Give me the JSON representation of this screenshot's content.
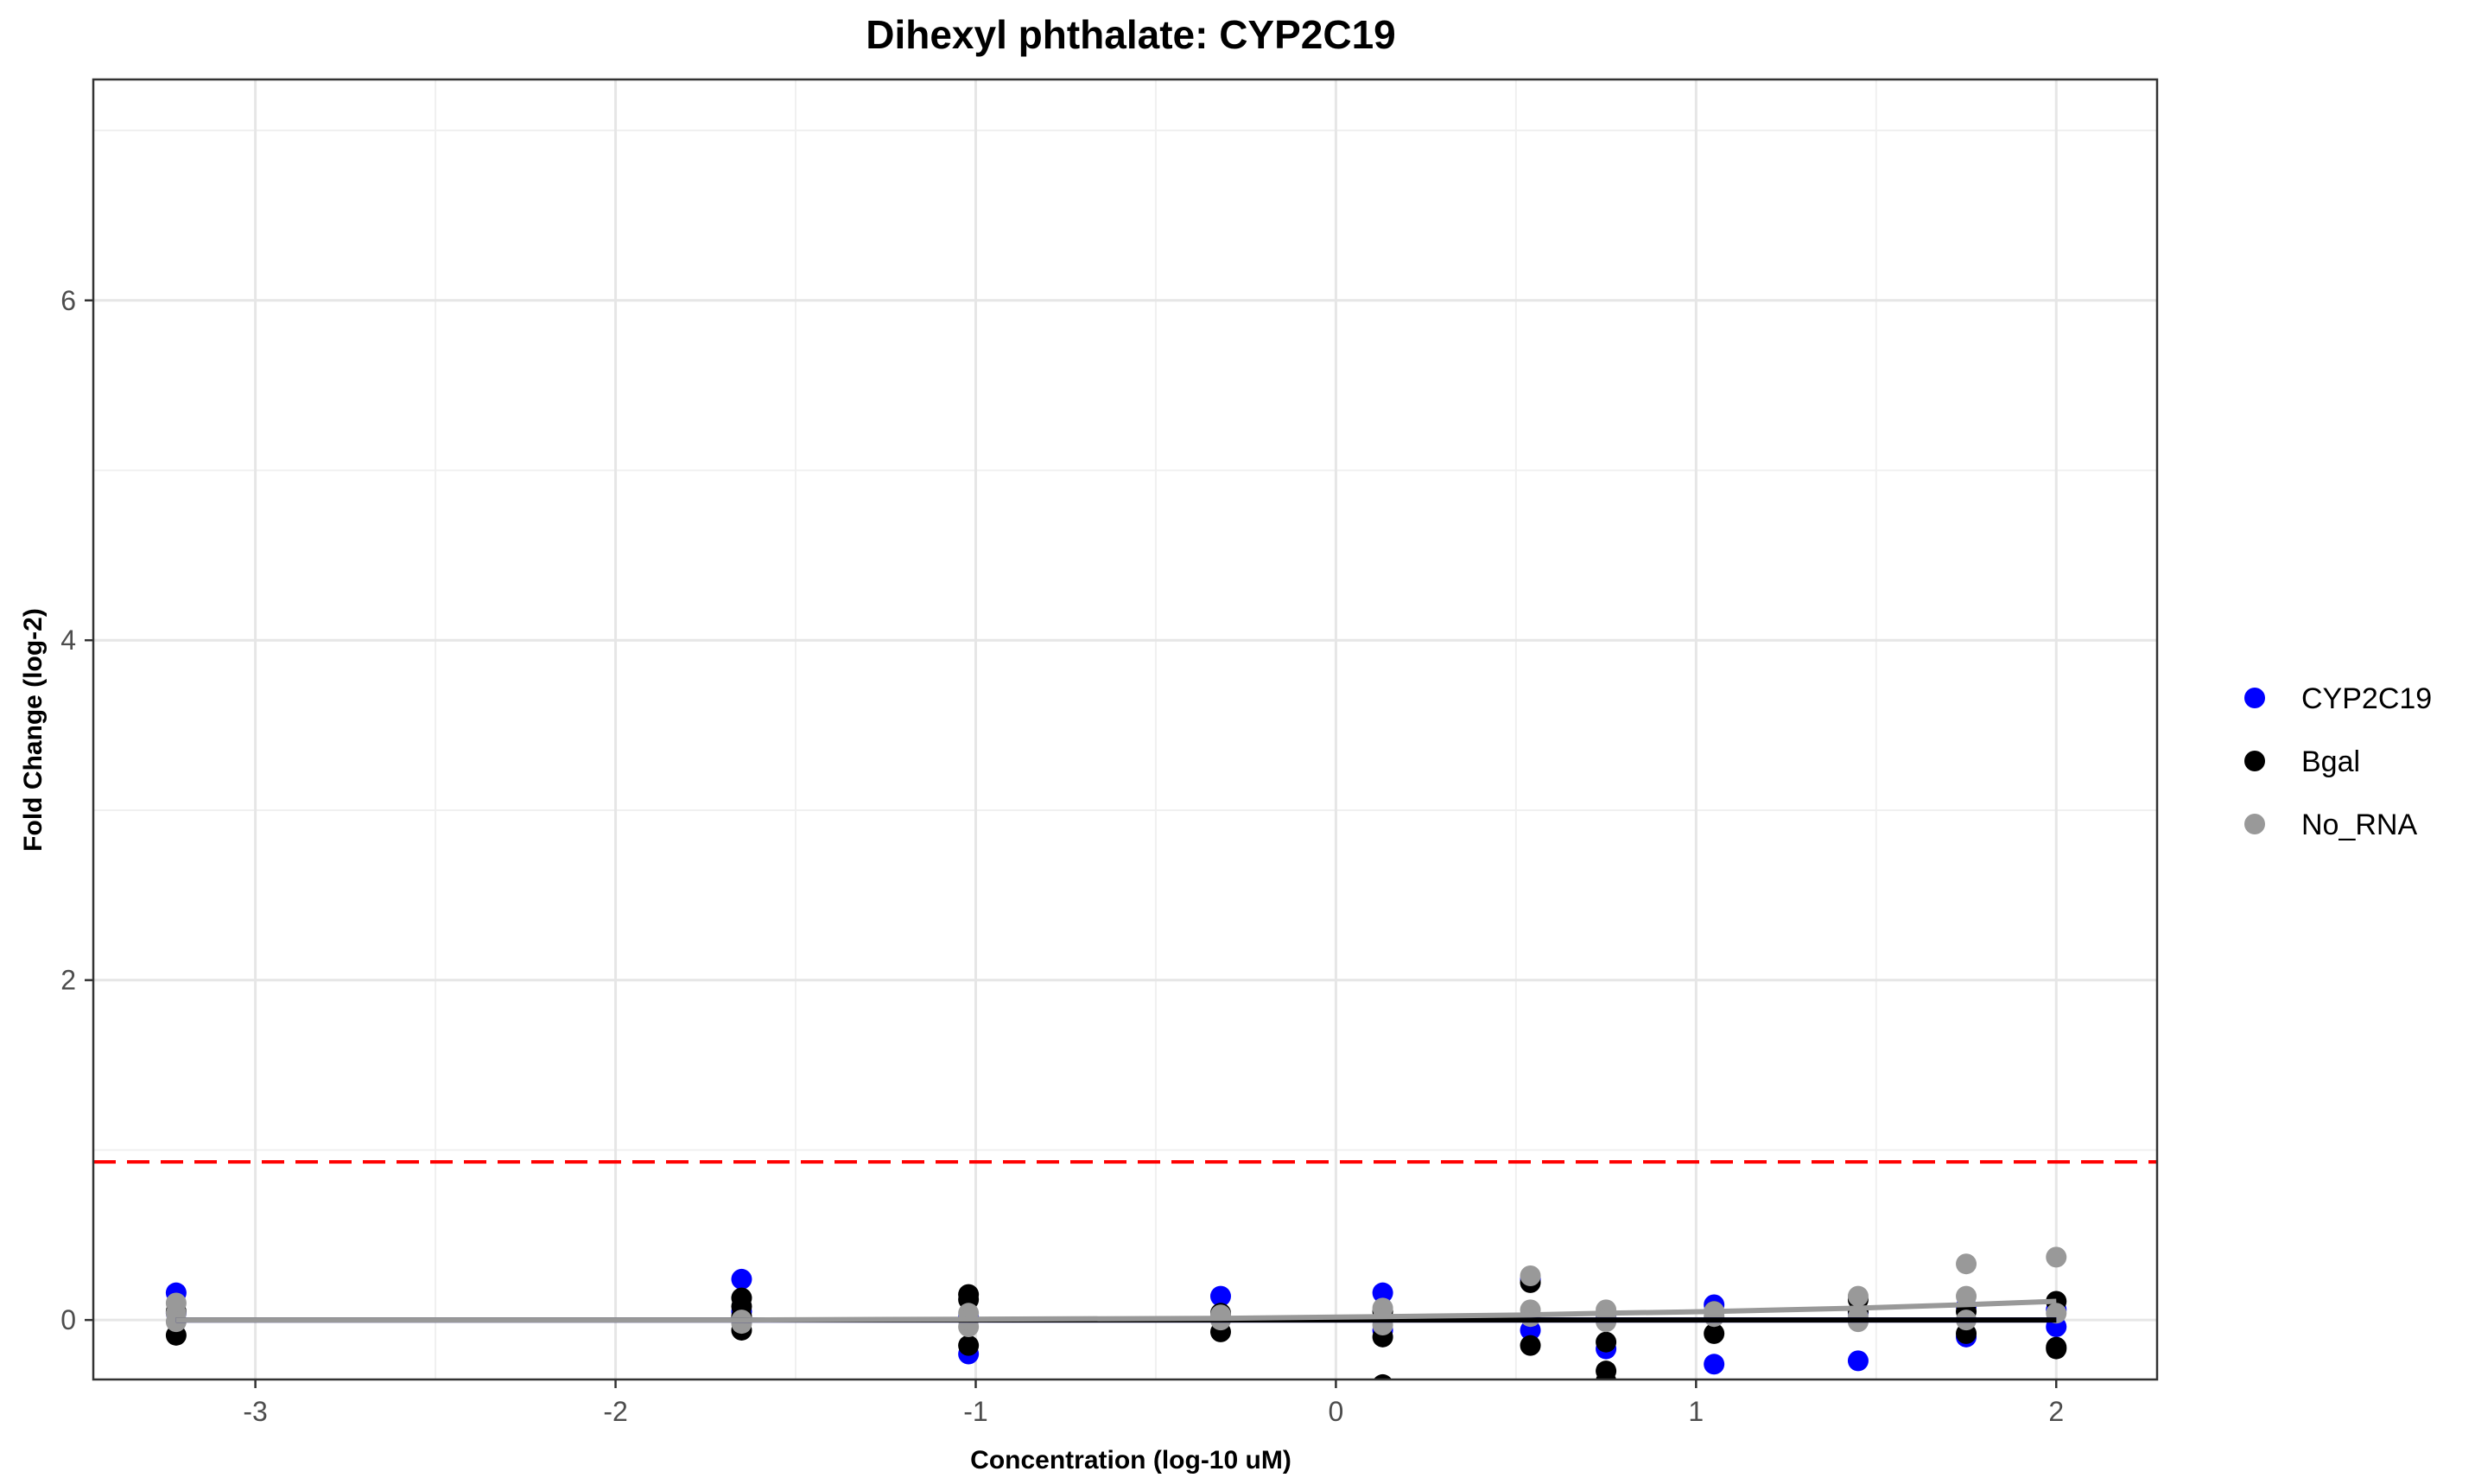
{
  "chart_data": {
    "type": "scatter",
    "title": "Dihexyl phthalate: CYP2C19",
    "xlabel": "Concentration (log-10 uM)",
    "ylabel": "Fold Change (log-2)",
    "xlim": [
      -3.45,
      2.28
    ],
    "ylim": [
      -0.35,
      7.3
    ],
    "x_ticks": [
      -3,
      -2,
      -1,
      0,
      1,
      2
    ],
    "y_ticks": [
      0,
      2,
      4,
      6
    ],
    "grid": true,
    "legend_position": "right",
    "threshold": {
      "y": 0.93,
      "color": "#ff0000",
      "style": "dashed"
    },
    "series": [
      {
        "name": "CYP2C19",
        "color": "#0000ff",
        "points": [
          [
            -3.22,
            0.16
          ],
          [
            -3.22,
            0.04
          ],
          [
            -1.65,
            0.24
          ],
          [
            -1.65,
            0.05
          ],
          [
            -1.02,
            -0.2
          ],
          [
            -1.02,
            0.02
          ],
          [
            -0.32,
            0.14
          ],
          [
            -0.32,
            0.02
          ],
          [
            0.13,
            0.16
          ],
          [
            0.13,
            -0.06
          ],
          [
            0.54,
            0.24
          ],
          [
            0.54,
            -0.06
          ],
          [
            0.75,
            -0.17
          ],
          [
            0.75,
            0.02
          ],
          [
            1.05,
            -0.26
          ],
          [
            1.05,
            0.09
          ],
          [
            1.45,
            -0.24
          ],
          [
            1.45,
            0.04
          ],
          [
            1.75,
            -0.1
          ],
          [
            1.75,
            0.08
          ],
          [
            2.0,
            -0.04
          ],
          [
            2.0,
            0.06
          ]
        ],
        "fit": [
          [
            -3.22,
            0.0
          ],
          [
            -1.65,
            0.0
          ],
          [
            -1.02,
            0.0
          ],
          [
            -0.32,
            0.0
          ],
          [
            0.13,
            0.0
          ],
          [
            0.54,
            0.0
          ],
          [
            0.75,
            0.0
          ],
          [
            1.05,
            0.0
          ],
          [
            1.45,
            0.0
          ],
          [
            1.75,
            0.0
          ],
          [
            2.0,
            0.0
          ]
        ]
      },
      {
        "name": "Bgal",
        "color": "#000000",
        "points": [
          [
            -3.22,
            -0.09
          ],
          [
            -3.22,
            0.05
          ],
          [
            -1.65,
            0.13
          ],
          [
            -1.65,
            0.08
          ],
          [
            -1.65,
            -0.06
          ],
          [
            -1.65,
            0.02
          ],
          [
            -1.02,
            0.15
          ],
          [
            -1.02,
            0.12
          ],
          [
            -1.02,
            -0.15
          ],
          [
            -0.32,
            -0.07
          ],
          [
            -0.32,
            0.04
          ],
          [
            0.13,
            -0.1
          ],
          [
            0.13,
            0.05
          ],
          [
            0.13,
            -0.38
          ],
          [
            0.54,
            0.22
          ],
          [
            0.54,
            -0.15
          ],
          [
            0.75,
            -0.13
          ],
          [
            0.75,
            -0.3
          ],
          [
            0.75,
            -0.36
          ],
          [
            1.05,
            -0.08
          ],
          [
            1.05,
            0.05
          ],
          [
            1.45,
            0.05
          ],
          [
            1.45,
            0.12
          ],
          [
            1.75,
            0.05
          ],
          [
            1.75,
            -0.08
          ],
          [
            2.0,
            0.11
          ],
          [
            2.0,
            -0.16
          ],
          [
            2.0,
            -0.17
          ]
        ],
        "fit": [
          [
            -3.22,
            0.0
          ],
          [
            -1.65,
            0.0
          ],
          [
            -1.02,
            0.0
          ],
          [
            -0.32,
            0.0
          ],
          [
            0.13,
            0.0
          ],
          [
            0.54,
            0.0
          ],
          [
            0.75,
            0.0
          ],
          [
            1.05,
            0.0
          ],
          [
            1.45,
            0.0
          ],
          [
            1.75,
            0.0
          ],
          [
            2.0,
            0.0
          ]
        ]
      },
      {
        "name": "No_RNA",
        "color": "#999999",
        "points": [
          [
            -3.22,
            0.1
          ],
          [
            -3.22,
            0.04
          ],
          [
            -3.22,
            -0.01
          ],
          [
            -1.65,
            -0.02
          ],
          [
            -1.65,
            0.0
          ],
          [
            -1.02,
            0.04
          ],
          [
            -1.02,
            -0.04
          ],
          [
            -1.02,
            0.0
          ],
          [
            -0.32,
            0.03
          ],
          [
            -0.32,
            0.0
          ],
          [
            0.13,
            0.07
          ],
          [
            0.13,
            -0.03
          ],
          [
            0.13,
            0.01
          ],
          [
            0.54,
            0.26
          ],
          [
            0.54,
            0.06
          ],
          [
            0.54,
            0.02
          ],
          [
            0.75,
            0.06
          ],
          [
            0.75,
            0.01
          ],
          [
            0.75,
            -0.01
          ],
          [
            1.05,
            0.05
          ],
          [
            1.05,
            0.02
          ],
          [
            1.45,
            0.14
          ],
          [
            1.45,
            -0.01
          ],
          [
            1.45,
            0.02
          ],
          [
            1.75,
            0.33
          ],
          [
            1.75,
            0.14
          ],
          [
            1.75,
            0.0
          ],
          [
            2.0,
            0.37
          ],
          [
            2.0,
            0.04
          ]
        ],
        "fit": [
          [
            -3.22,
            0.0
          ],
          [
            -1.65,
            0.0
          ],
          [
            -1.02,
            0.005
          ],
          [
            -0.32,
            0.01
          ],
          [
            0.13,
            0.02
          ],
          [
            0.54,
            0.03
          ],
          [
            0.75,
            0.04
          ],
          [
            1.05,
            0.05
          ],
          [
            1.45,
            0.07
          ],
          [
            1.75,
            0.09
          ],
          [
            2.0,
            0.11
          ]
        ]
      }
    ]
  }
}
